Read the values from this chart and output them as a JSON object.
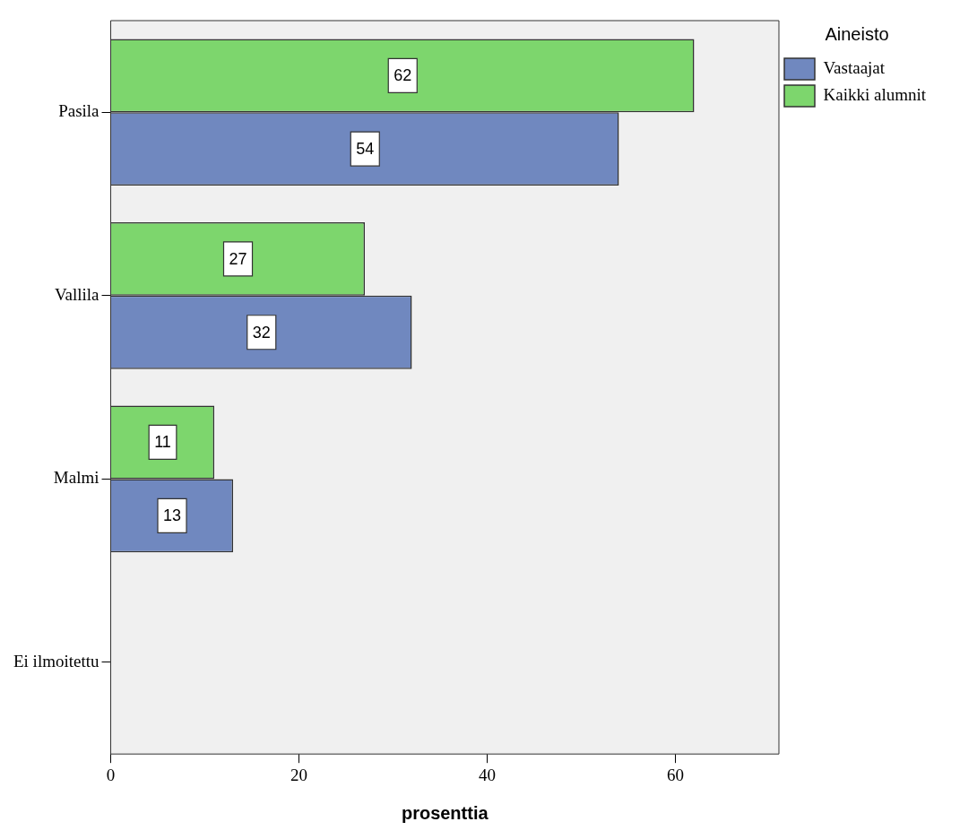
{
  "chart_data": {
    "type": "bar",
    "orientation": "horizontal",
    "xlabel": "prosenttia",
    "legend_title": "Aineisto",
    "legend": "right",
    "data_labels": true,
    "categories": [
      "Pasila",
      "Vallila",
      "Malmi",
      "Ei ilmoitettu"
    ],
    "series": [
      {
        "name": "Vastaajat",
        "color": "#7088bf",
        "values": [
          54,
          32,
          13,
          null
        ]
      },
      {
        "name": "Kaikki alumnit",
        "color": "#7dd66d",
        "values": [
          62,
          27,
          11,
          null
        ]
      }
    ],
    "xlim": [
      0,
      71
    ],
    "xticks": [
      0,
      20,
      40,
      60
    ]
  }
}
